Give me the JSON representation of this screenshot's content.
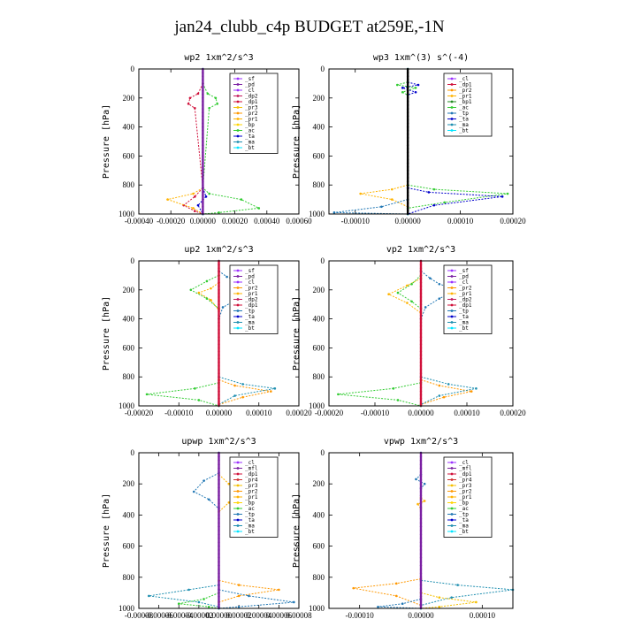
{
  "title": "jan24_clubb_c4p  BUDGET at259E,-1N",
  "colors": {
    "sf": "#9b30ff",
    "pd": "#7a1fa2",
    "cl": "#9b30ff",
    "mfl": "#7a1fa2",
    "dp1": "#d0103a",
    "dp2": "#c2185b",
    "pr1": "#ffb300",
    "pr2": "#ff9800",
    "pr3": "#f5c000",
    "pr4": "#d03030",
    "bp": "#ffd400",
    "bp1": "#228b22",
    "ac": "#33cc33",
    "tp": "#2077b4",
    "ta": "#0000cc",
    "ma": "#1f8fb0",
    "bt": "#00e5ff",
    "zero": "#000000"
  },
  "chart_data": [
    {
      "id": "wp2",
      "type": "line",
      "title": "wp2   1xm^2/s^3",
      "ylabel": "Pressure [hPa]",
      "xlim": [
        -0.0004,
        0.0006
      ],
      "ylim": [
        0,
        1000
      ],
      "xticks": [
        "-0.00040",
        "-0.00020",
        "0.00000",
        "0.00020",
        "0.00040",
        "0.00060"
      ],
      "xtick_vals": [
        -0.0004,
        -0.0002,
        0,
        0.0002,
        0.0004,
        0.0006
      ],
      "yticks": [
        "0",
        "200",
        "400",
        "600",
        "800",
        "1000"
      ],
      "legend": [
        "_sf",
        "_pd",
        "_cl",
        "_dp2",
        "_dp1",
        "_pr3",
        "_pr2",
        "_pr1",
        "_bp",
        "_ac",
        "_ta",
        "_ma",
        "_bt"
      ],
      "series": [
        {
          "name": "_dp1",
          "key": "dp1",
          "x": [
            0,
            -3e-05,
            -8e-05,
            -9e-05,
            -5e-05,
            0,
            -5e-05,
            -0.00012,
            -5e-05,
            0
          ],
          "y": [
            100,
            170,
            200,
            240,
            270,
            820,
            880,
            940,
            980,
            1000
          ]
        },
        {
          "name": "_ac",
          "key": "ac",
          "x": [
            0,
            3e-05,
            8e-05,
            9e-05,
            4e-05,
            0,
            4e-05,
            0.00024,
            0.00035,
            0.0001,
            0
          ],
          "y": [
            100,
            170,
            200,
            240,
            270,
            820,
            860,
            900,
            960,
            990,
            1000
          ]
        },
        {
          "name": "_pr1",
          "key": "pr1",
          "x": [
            0,
            -6e-05,
            -0.00022,
            -6e-05,
            0
          ],
          "y": [
            820,
            860,
            900,
            960,
            1000
          ]
        },
        {
          "name": "_ta",
          "key": "ta",
          "x": [
            0,
            2e-05,
            -3e-05,
            0
          ],
          "y": [
            820,
            880,
            940,
            1000
          ]
        },
        {
          "name": "_bt",
          "key": "bt",
          "x": [
            0,
            0
          ],
          "y": [
            0,
            1000
          ]
        }
      ],
      "zero": "purple"
    },
    {
      "id": "wp3",
      "type": "line",
      "title": "wp3   1xm^(3) s^(-4)",
      "ylabel": "Pressure [hPa]",
      "xlim": [
        -0.00015,
        0.0002
      ],
      "ylim": [
        0,
        1000
      ],
      "xticks": [
        "-0.00010",
        "0.00000",
        "0.00010",
        "0.00020"
      ],
      "xtick_vals": [
        -0.0001,
        0,
        0.0001,
        0.0002
      ],
      "yticks": [
        "0",
        "200",
        "400",
        "600",
        "800",
        "1000"
      ],
      "legend": [
        "_cl",
        "_dp1",
        "_pr2",
        "_pr1",
        "_bp1",
        "_ac",
        "_tp",
        "_ta",
        "_ma",
        "_bt"
      ],
      "series": [
        {
          "name": "_ta",
          "key": "ta",
          "x": [
            0,
            2e-05,
            -1e-05,
            1.5e-05,
            0
          ],
          "y": [
            90,
            110,
            130,
            160,
            180
          ]
        },
        {
          "name": "_ac",
          "key": "ac",
          "x": [
            0,
            -2e-05,
            1.5e-05,
            -1e-05,
            0
          ],
          "y": [
            90,
            110,
            130,
            160,
            180
          ]
        },
        {
          "name": "_pr1",
          "key": "pr1",
          "x": [
            0,
            -3e-05,
            -9e-05,
            -3e-05,
            0
          ],
          "y": [
            800,
            830,
            860,
            900,
            950
          ]
        },
        {
          "name": "_ac2",
          "key": "ac",
          "x": [
            0,
            5e-05,
            0.00019,
            7e-05,
            0
          ],
          "y": [
            800,
            830,
            860,
            920,
            960
          ]
        },
        {
          "name": "_ta2",
          "key": "ta",
          "x": [
            0,
            4e-05,
            0.00018,
            5e-05,
            0
          ],
          "y": [
            820,
            850,
            880,
            940,
            1000
          ]
        },
        {
          "name": "_tp",
          "key": "tp",
          "x": [
            0,
            -5e-05,
            -0.00014,
            0
          ],
          "y": [
            900,
            950,
            990,
            1000
          ]
        },
        {
          "name": "_bt",
          "key": "bt",
          "x": [
            0,
            0
          ],
          "y": [
            0,
            1000
          ]
        }
      ],
      "zero": "black"
    },
    {
      "id": "up2",
      "type": "line",
      "title": "up2   1xm^2/s^3",
      "ylabel": "Pressure [hPa]",
      "xlim": [
        -0.0002,
        0.0002
      ],
      "ylim": [
        0,
        1000
      ],
      "xticks": [
        "-0.00020",
        "-0.00010",
        "0.00000",
        "0.00010",
        "0.00020"
      ],
      "xtick_vals": [
        -0.0002,
        -0.0001,
        0,
        0.0001,
        0.0002
      ],
      "yticks": [
        "0",
        "200",
        "400",
        "600",
        "800",
        "1000"
      ],
      "legend": [
        "_sf",
        "_pd",
        "_cl",
        "_pr2",
        "_pr1",
        "_dp2",
        "_dp1",
        "_tp",
        "_ta",
        "_ma",
        "_bt"
      ],
      "series": [
        {
          "name": "_tp",
          "key": "tp",
          "x": [
            0,
            2e-05,
            6e-05,
            0.00012,
            5e-05,
            1e-05,
            0
          ],
          "y": [
            70,
            110,
            150,
            200,
            260,
            320,
            400
          ]
        },
        {
          "name": "_pr1",
          "key": "pr1",
          "x": [
            0,
            -2e-05,
            -5e-05,
            -2e-05,
            0
          ],
          "y": [
            150,
            190,
            220,
            270,
            340
          ]
        },
        {
          "name": "_ac",
          "key": "ac",
          "x": [
            0,
            -3e-05,
            -7e-05,
            -3e-05,
            0
          ],
          "y": [
            100,
            140,
            200,
            260,
            330
          ]
        },
        {
          "name": "_pr2",
          "key": "pr2",
          "x": [
            0,
            4e-05,
            0.00013,
            6e-05,
            0
          ],
          "y": [
            820,
            860,
            900,
            940,
            990
          ]
        },
        {
          "name": "_ac2",
          "key": "ac",
          "x": [
            0,
            -6e-05,
            -0.00018,
            -5e-05,
            0
          ],
          "y": [
            840,
            880,
            920,
            960,
            1000
          ]
        },
        {
          "name": "_ma",
          "key": "ma",
          "x": [
            0,
            6e-05,
            0.00014,
            4e-05,
            0
          ],
          "y": [
            800,
            850,
            880,
            930,
            990
          ]
        },
        {
          "name": "_bt",
          "key": "bt",
          "x": [
            0,
            0
          ],
          "y": [
            0,
            1000
          ]
        }
      ],
      "zero": "red"
    },
    {
      "id": "vp2",
      "type": "line",
      "title": "vp2   1xm^2/s^3",
      "ylabel": "Pressure [hPa]",
      "xlim": [
        -0.0002,
        0.0002
      ],
      "ylim": [
        0,
        1000
      ],
      "xticks": [
        "-0.00020",
        "-0.00010",
        "0.00000",
        "0.00010",
        "0.00020"
      ],
      "xtick_vals": [
        -0.0002,
        -0.0001,
        0,
        0.0001,
        0.0002
      ],
      "yticks": [
        "0",
        "200",
        "400",
        "600",
        "800",
        "1000"
      ],
      "legend": [
        "_sf",
        "_pd",
        "_cl",
        "_pr2",
        "_pr1",
        "_dp2",
        "_dp1",
        "_tp",
        "_ta",
        "_ma",
        "_bt"
      ],
      "series": [
        {
          "name": "_tp",
          "key": "tp",
          "x": [
            0,
            2e-05,
            4e-05,
            8e-05,
            4e-05,
            1e-05,
            0
          ],
          "y": [
            70,
            120,
            160,
            200,
            260,
            320,
            400
          ]
        },
        {
          "name": "_pr1",
          "key": "pr1",
          "x": [
            0,
            -3e-05,
            -7e-05,
            -3e-05,
            0
          ],
          "y": [
            120,
            170,
            230,
            290,
            360
          ]
        },
        {
          "name": "_ac",
          "key": "ac",
          "x": [
            0,
            -2e-05,
            -5e-05,
            -2e-05,
            0
          ],
          "y": [
            100,
            160,
            220,
            280,
            330
          ]
        },
        {
          "name": "_pr2",
          "key": "pr2",
          "x": [
            0,
            4e-05,
            0.00011,
            5e-05,
            0
          ],
          "y": [
            820,
            860,
            900,
            940,
            990
          ]
        },
        {
          "name": "_ac2",
          "key": "ac",
          "x": [
            0,
            -6e-05,
            -0.00018,
            -5e-05,
            0
          ],
          "y": [
            840,
            880,
            920,
            960,
            1000
          ]
        },
        {
          "name": "_ma",
          "key": "ma",
          "x": [
            0,
            6e-05,
            0.00012,
            4e-05,
            0
          ],
          "y": [
            800,
            850,
            880,
            930,
            990
          ]
        },
        {
          "name": "_bt",
          "key": "bt",
          "x": [
            0,
            0
          ],
          "y": [
            0,
            1000
          ]
        }
      ],
      "zero": "red"
    },
    {
      "id": "upwp",
      "type": "line",
      "title": "upwp   1xm^2/s^3",
      "ylabel": "Pressure [hPa]",
      "xlim": [
        -8e-05,
        8e-05
      ],
      "ylim": [
        0,
        1000
      ],
      "xticks": [
        "-0.00008",
        "-0.00006",
        "-0.00004",
        "-0.00002",
        "0.00000",
        "0.00002",
        "0.00004",
        "0.00006",
        "0.00008"
      ],
      "xtick_vals": [
        -8e-05,
        -6e-05,
        -4e-05,
        -2e-05,
        0,
        2e-05,
        4e-05,
        6e-05,
        8e-05
      ],
      "yticks": [
        "0",
        "200",
        "400",
        "600",
        "800",
        "1000"
      ],
      "legend": [
        "_cl",
        "_mfl",
        "_dp1",
        "_pr4",
        "_pr3",
        "_pr2",
        "_pr1",
        "_bp",
        "_ac",
        "_tp",
        "_ta",
        "_ma",
        "_bt"
      ],
      "series": [
        {
          "name": "_tp",
          "key": "tp",
          "x": [
            0,
            -1.5e-05,
            -2.5e-05,
            -1e-05,
            0
          ],
          "y": [
            130,
            180,
            250,
            300,
            360
          ]
        },
        {
          "name": "_pr1",
          "key": "pr1",
          "x": [
            0,
            1e-05,
            2e-05,
            1e-05,
            0
          ],
          "y": [
            140,
            200,
            250,
            320,
            380
          ]
        },
        {
          "name": "_pr2",
          "key": "pr2",
          "x": [
            0,
            2e-05,
            6e-05,
            2e-05,
            0
          ],
          "y": [
            820,
            850,
            880,
            920,
            960
          ]
        },
        {
          "name": "_ma",
          "key": "ma",
          "x": [
            0,
            -3e-05,
            -7e-05,
            -2e-05,
            0
          ],
          "y": [
            850,
            880,
            920,
            960,
            990
          ]
        },
        {
          "name": "_tp2",
          "key": "tp",
          "x": [
            0,
            3e-05,
            7.5e-05,
            2e-05,
            0
          ],
          "y": [
            880,
            920,
            960,
            990,
            1000
          ]
        },
        {
          "name": "_ac",
          "key": "ac",
          "x": [
            0,
            -1.5e-05,
            -4e-05,
            -1e-05,
            0
          ],
          "y": [
            900,
            940,
            970,
            990,
            1000
          ]
        },
        {
          "name": "_bt",
          "key": "bt",
          "x": [
            0,
            0
          ],
          "y": [
            0,
            1000
          ]
        }
      ],
      "zero": "purple"
    },
    {
      "id": "vpwp",
      "type": "line",
      "title": "vpwp   1xm^2/s^3",
      "ylabel": "Pressure [hPa]",
      "xlim": [
        -0.00015,
        0.00015
      ],
      "ylim": [
        0,
        1000
      ],
      "xticks": [
        "-0.00010",
        "0.00000",
        "0.00010"
      ],
      "xtick_vals": [
        -0.0001,
        0,
        0.0001
      ],
      "yticks": [
        "0",
        "200",
        "400",
        "600",
        "800",
        "1000"
      ],
      "legend": [
        "_cl",
        "_mfl",
        "_dp1",
        "_pr4",
        "_pr3",
        "_pr2",
        "_pr1",
        "_bp",
        "_ac",
        "_tp",
        "_ta",
        "_ma",
        "_bt"
      ],
      "series": [
        {
          "name": "_tp",
          "key": "tp",
          "x": [
            0,
            -8e-06,
            6e-06,
            0
          ],
          "y": [
            140,
            170,
            200,
            230
          ]
        },
        {
          "name": "_pr1",
          "key": "pr1",
          "x": [
            0,
            6e-06,
            -5e-06,
            0
          ],
          "y": [
            290,
            310,
            330,
            360
          ]
        },
        {
          "name": "_pr2",
          "key": "pr2",
          "x": [
            0,
            -4e-05,
            -0.00011,
            -4e-05,
            0
          ],
          "y": [
            810,
            840,
            870,
            920,
            980
          ]
        },
        {
          "name": "_ma",
          "key": "ma",
          "x": [
            0,
            6e-05,
            0.00015,
            5e-05,
            0
          ],
          "y": [
            820,
            850,
            880,
            930,
            980
          ]
        },
        {
          "name": "_pr3",
          "key": "pr3",
          "x": [
            0,
            3e-05,
            9e-05,
            3e-05,
            0
          ],
          "y": [
            900,
            930,
            960,
            990,
            1000
          ]
        },
        {
          "name": "_tp2",
          "key": "tp",
          "x": [
            0,
            -3e-05,
            -7e-05,
            0
          ],
          "y": [
            940,
            970,
            990,
            1000
          ]
        },
        {
          "name": "_bt",
          "key": "bt",
          "x": [
            0,
            0
          ],
          "y": [
            0,
            1000
          ]
        }
      ],
      "zero": "purple"
    }
  ]
}
